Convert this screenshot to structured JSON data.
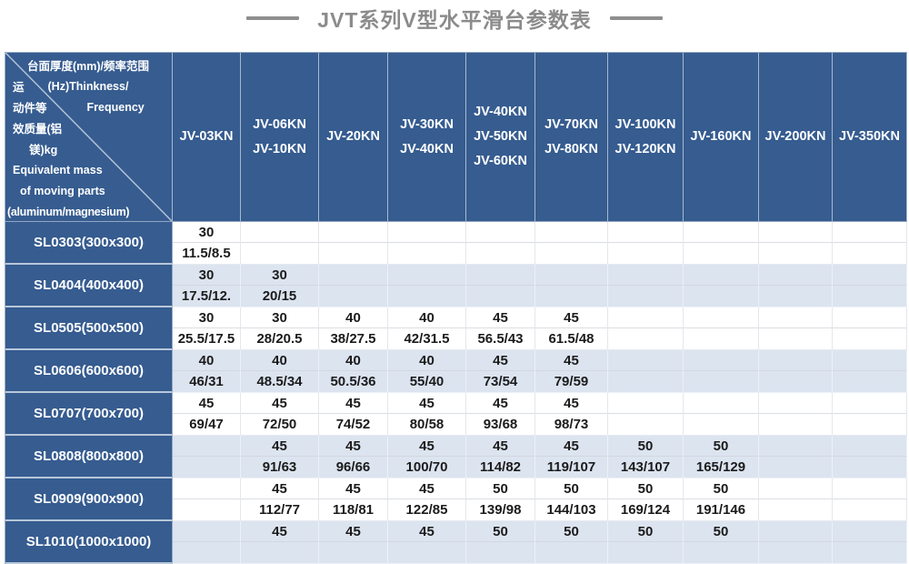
{
  "title": {
    "text": "JVT系列V型水平滑台参数表"
  },
  "colors": {
    "header_blue": "#365C90",
    "row_alt_blue": "#DCE4F0",
    "title_gray": "#8B8B8B",
    "data_text": "#1B1B1B"
  },
  "table": {
    "corner": {
      "lines": [
        {
          "t1": "台面厚度(mm)/频率范围"
        },
        {
          "t1": "运",
          "t2": "(Hz)Thinkness/"
        },
        {
          "t1": "动件等",
          "t2": "Frequency"
        },
        {
          "t1": "效质量(铝"
        },
        {
          "t1": "镁)kg"
        },
        {
          "t1": "Equivalent mass"
        },
        {
          "t1": "of moving parts"
        },
        {
          "t1": "(aluminum/magnesium)"
        }
      ]
    },
    "columns": [
      {
        "lines": [
          "JV-03KN"
        ]
      },
      {
        "lines": [
          "JV-06KN",
          "JV-10KN"
        ]
      },
      {
        "lines": [
          "JV-20KN"
        ]
      },
      {
        "lines": [
          "JV-30KN",
          "JV-40KN"
        ]
      },
      {
        "lines": [
          "JV-40KN",
          "JV-50KN",
          "JV-60KN"
        ]
      },
      {
        "lines": [
          "JV-70KN",
          "JV-80KN"
        ]
      },
      {
        "lines": [
          "JV-100KN",
          "JV-120KN"
        ]
      },
      {
        "lines": [
          "JV-160KN"
        ]
      },
      {
        "lines": [
          "JV-200KN"
        ]
      },
      {
        "lines": [
          "JV-350KN"
        ]
      }
    ],
    "rows": [
      {
        "label": "SL0303(300x300)",
        "cells": [
          {
            "top": "30",
            "bottom": "11.5/8.5"
          },
          null,
          null,
          null,
          null,
          null,
          null,
          null,
          null,
          null
        ]
      },
      {
        "label": "SL0404(400x400)",
        "cells": [
          {
            "top": "30",
            "bottom": "17.5/12."
          },
          {
            "top": "30",
            "bottom": "20/15"
          },
          null,
          null,
          null,
          null,
          null,
          null,
          null,
          null
        ]
      },
      {
        "label": "SL0505(500x500)",
        "cells": [
          {
            "top": "30",
            "bottom": "25.5/17.5"
          },
          {
            "top": "30",
            "bottom": "28/20.5"
          },
          {
            "top": "40",
            "bottom": "38/27.5"
          },
          {
            "top": "40",
            "bottom": "42/31.5"
          },
          {
            "top": "45",
            "bottom": "56.5/43"
          },
          {
            "top": "45",
            "bottom": "61.5/48"
          },
          null,
          null,
          null,
          null
        ]
      },
      {
        "label": "SL0606(600x600)",
        "cells": [
          {
            "top": "40",
            "bottom": "46/31"
          },
          {
            "top": "40",
            "bottom": "48.5/34"
          },
          {
            "top": "40",
            "bottom": "50.5/36"
          },
          {
            "top": "40",
            "bottom": "55/40"
          },
          {
            "top": "45",
            "bottom": "73/54"
          },
          {
            "top": "45",
            "bottom": "79/59"
          },
          null,
          null,
          null,
          null
        ]
      },
      {
        "label": "SL0707(700x700)",
        "cells": [
          {
            "top": "45",
            "bottom": "69/47"
          },
          {
            "top": "45",
            "bottom": "72/50"
          },
          {
            "top": "45",
            "bottom": "74/52"
          },
          {
            "top": "45",
            "bottom": "80/58"
          },
          {
            "top": "45",
            "bottom": "93/68"
          },
          {
            "top": "45",
            "bottom": "98/73"
          },
          null,
          null,
          null,
          null
        ]
      },
      {
        "label": "SL0808(800x800)",
        "cells": [
          null,
          {
            "top": "45",
            "bottom": "91/63"
          },
          {
            "top": "45",
            "bottom": "96/66"
          },
          {
            "top": "45",
            "bottom": "100/70"
          },
          {
            "top": "45",
            "bottom": "114/82"
          },
          {
            "top": "45",
            "bottom": "119/107"
          },
          {
            "top": "50",
            "bottom": "143/107"
          },
          {
            "top": "50",
            "bottom": "165/129"
          },
          null,
          null
        ]
      },
      {
        "label": "SL0909(900x900)",
        "cells": [
          null,
          {
            "top": "45",
            "bottom": "112/77"
          },
          {
            "top": "45",
            "bottom": "118/81"
          },
          {
            "top": "45",
            "bottom": "122/85"
          },
          {
            "top": "50",
            "bottom": "139/98"
          },
          {
            "top": "50",
            "bottom": "144/103"
          },
          {
            "top": "50",
            "bottom": "169/124"
          },
          {
            "top": "50",
            "bottom": "191/146"
          },
          null,
          null
        ]
      },
      {
        "label": "SL1010(1000x1000)",
        "cells": [
          null,
          {
            "top": "45",
            "bottom": ""
          },
          {
            "top": "45",
            "bottom": ""
          },
          {
            "top": "45",
            "bottom": ""
          },
          {
            "top": "50",
            "bottom": ""
          },
          {
            "top": "50",
            "bottom": ""
          },
          {
            "top": "50",
            "bottom": ""
          },
          {
            "top": "50",
            "bottom": ""
          },
          null,
          null
        ]
      }
    ]
  }
}
